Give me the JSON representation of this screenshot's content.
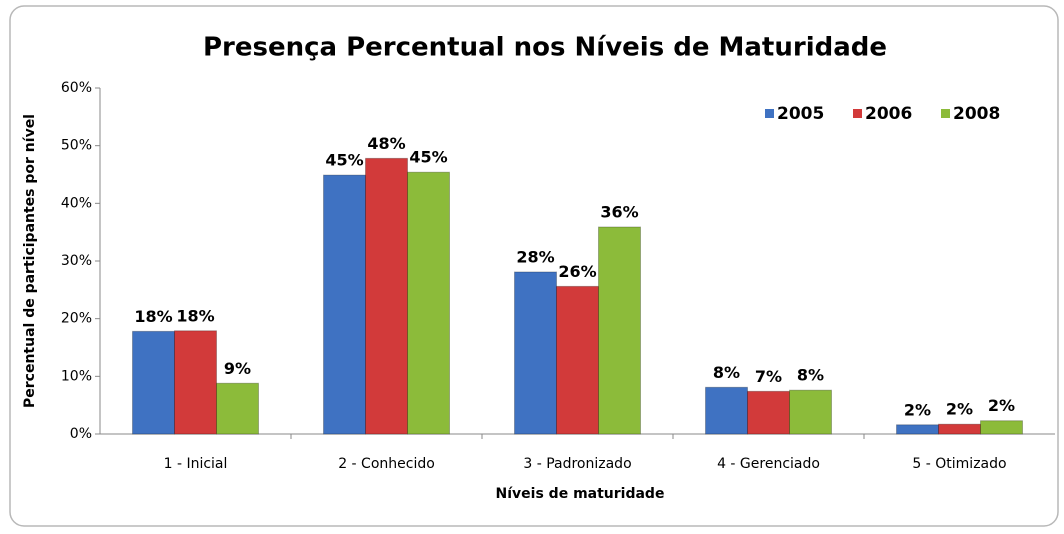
{
  "chart_data": {
    "type": "bar",
    "title": "Presença Percentual nos Níveis de Maturidade",
    "x_label": "Níveis de maturidade",
    "y_label": "Percentual de participantes por nível",
    "categories": [
      "1 - Inicial",
      "2 - Conhecido",
      "3 - Padronizado",
      "4 - Gerenciado",
      "5 - Otimizado"
    ],
    "series": [
      {
        "name": "2005",
        "color": "#3f72c2",
        "values": [
          17.8,
          44.9,
          28.1,
          8.1,
          1.6
        ],
        "value_labels": [
          "18%",
          "45%",
          "28%",
          "8%",
          "2%"
        ]
      },
      {
        "name": "2006",
        "color": "#d23a3a",
        "values": [
          17.9,
          47.8,
          25.6,
          7.4,
          1.7
        ],
        "value_labels": [
          "18%",
          "48%",
          "26%",
          "7%",
          "2%"
        ]
      },
      {
        "name": "2008",
        "color": "#8cbb3a",
        "values": [
          8.8,
          45.4,
          35.9,
          7.6,
          2.3
        ],
        "value_labels": [
          "9%",
          "45%",
          "36%",
          "8%",
          "2%"
        ]
      }
    ],
    "ylim": [
      0,
      60
    ],
    "yticks": [
      {
        "value": 0,
        "label": "0%"
      },
      {
        "value": 10,
        "label": "10%"
      },
      {
        "value": 20,
        "label": "20%"
      },
      {
        "value": 30,
        "label": "30%"
      },
      {
        "value": 40,
        "label": "40%"
      },
      {
        "value": 50,
        "label": "50%"
      },
      {
        "value": 60,
        "label": "60%"
      }
    ],
    "grid": false,
    "legend": "top-right"
  }
}
